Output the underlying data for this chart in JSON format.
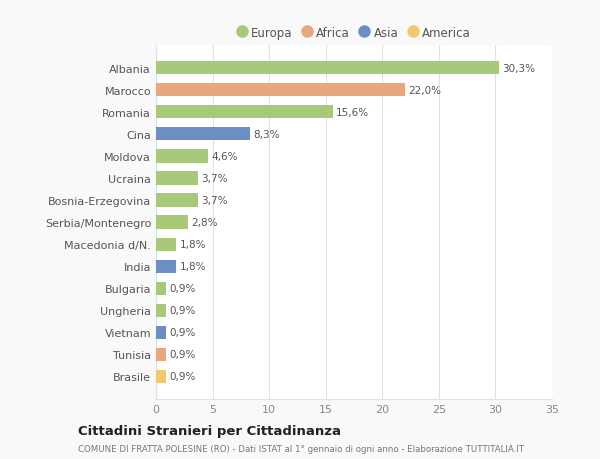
{
  "categories": [
    "Albania",
    "Marocco",
    "Romania",
    "Cina",
    "Moldova",
    "Ucraina",
    "Bosnia-Erzegovina",
    "Serbia/Montenegro",
    "Macedonia d/N.",
    "India",
    "Bulgaria",
    "Ungheria",
    "Vietnam",
    "Tunisia",
    "Brasile"
  ],
  "values": [
    30.3,
    22.0,
    15.6,
    8.3,
    4.6,
    3.7,
    3.7,
    2.8,
    1.8,
    1.8,
    0.9,
    0.9,
    0.9,
    0.9,
    0.9
  ],
  "labels": [
    "30,3%",
    "22,0%",
    "15,6%",
    "8,3%",
    "4,6%",
    "3,7%",
    "3,7%",
    "2,8%",
    "1,8%",
    "1,8%",
    "0,9%",
    "0,9%",
    "0,9%",
    "0,9%",
    "0,9%"
  ],
  "colors": [
    "#a8c87a",
    "#e8a87c",
    "#a8c87a",
    "#6b8ec4",
    "#a8c87a",
    "#a8c87a",
    "#a8c87a",
    "#a8c87a",
    "#a8c87a",
    "#6b8ec4",
    "#a8c87a",
    "#a8c87a",
    "#6b8ec4",
    "#e8a87c",
    "#f0c96e"
  ],
  "legend_labels": [
    "Europa",
    "Africa",
    "Asia",
    "America"
  ],
  "legend_colors": [
    "#a8c87a",
    "#e8a87c",
    "#6b8ec4",
    "#f0c96e"
  ],
  "xlim": [
    0,
    35
  ],
  "xticks": [
    0,
    5,
    10,
    15,
    20,
    25,
    30,
    35
  ],
  "title": "Cittadini Stranieri per Cittadinanza",
  "subtitle": "COMUNE DI FRATTA POLESINE (RO) - Dati ISTAT al 1° gennaio di ogni anno - Elaborazione TUTTITALIA.IT",
  "bg_color": "#f9f9f9",
  "bar_bg_color": "#ffffff",
  "grid_color": "#e0e0e0",
  "bar_height": 0.6
}
